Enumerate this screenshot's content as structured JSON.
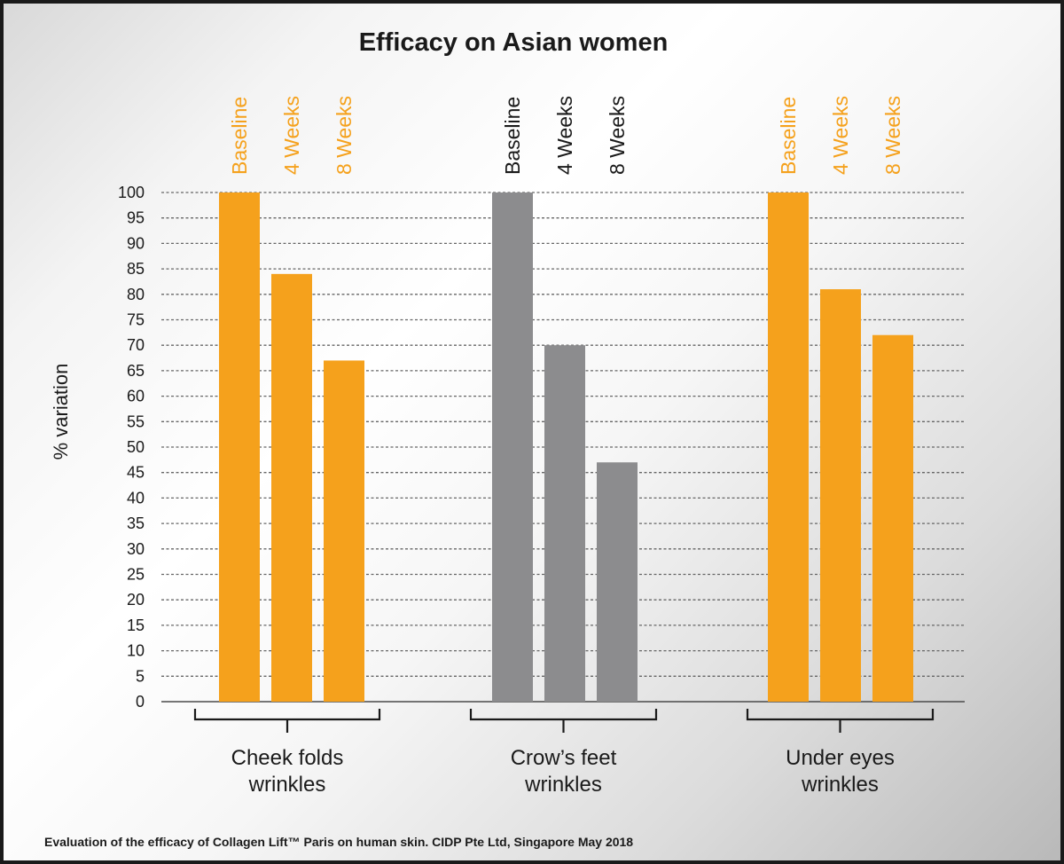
{
  "chart_data": {
    "type": "bar",
    "title": "Efficacy on Asian women",
    "ylabel": "% variation",
    "ylim": [
      0,
      100
    ],
    "yticks": [
      0,
      5,
      10,
      15,
      20,
      25,
      30,
      35,
      40,
      45,
      50,
      55,
      60,
      65,
      70,
      75,
      80,
      85,
      90,
      95,
      100
    ],
    "grid": true,
    "groups": [
      {
        "label_lines": [
          "Cheek folds",
          "wrinkles"
        ],
        "color": "#f5a11c",
        "bars": [
          {
            "label": "Baseline",
            "value": 100
          },
          {
            "label": "4 Weeks",
            "value": 84
          },
          {
            "label": "8 Weeks",
            "value": 67
          }
        ]
      },
      {
        "label_lines": [
          "Crow’s feet",
          "wrinkles"
        ],
        "color": "#8c8c8e",
        "bars": [
          {
            "label": "Baseline",
            "value": 100
          },
          {
            "label": "4 Weeks",
            "value": 70
          },
          {
            "label": "8 Weeks",
            "value": 47
          }
        ]
      },
      {
        "label_lines": [
          "Under eyes",
          "wrinkles"
        ],
        "color": "#f5a11c",
        "bars": [
          {
            "label": "Baseline",
            "value": 100
          },
          {
            "label": "4 Weeks",
            "value": 81
          },
          {
            "label": "8 Weeks",
            "value": 72
          }
        ]
      }
    ],
    "bar_label_colors": [
      "#f5a11c",
      "#1a1a1a",
      "#f5a11c"
    ],
    "footnote": "Evaluation of the efficacy of Collagen Lift™ Paris on human skin. CIDP Pte Ltd, Singapore May 2018"
  }
}
